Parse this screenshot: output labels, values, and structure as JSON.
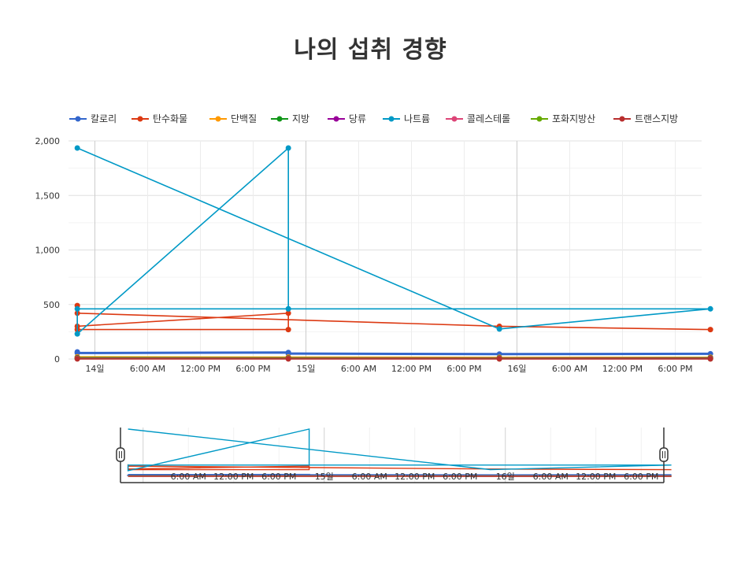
{
  "title": "나의 섭취 경향",
  "chart_data": {
    "type": "line",
    "title": "나의 섭취 경향",
    "xlabel": "",
    "ylabel": "",
    "ylim": [
      0,
      2000
    ],
    "yticks": [
      {
        "value": 0,
        "label": "0"
      },
      {
        "value": 500,
        "label": "500"
      },
      {
        "value": 1000,
        "label": "1,000"
      },
      {
        "value": 1500,
        "label": "1,500"
      },
      {
        "value": 2000,
        "label": "2,000"
      }
    ],
    "xlim": [
      "2015-07-13T21:00",
      "2015-07-16T21:00"
    ],
    "xticks": [
      {
        "x": "2015-07-14T00:00",
        "label": "14일"
      },
      {
        "x": "2015-07-14T06:00",
        "label": "6:00 AM"
      },
      {
        "x": "2015-07-14T12:00",
        "label": "12:00 PM"
      },
      {
        "x": "2015-07-14T18:00",
        "label": "6:00 PM"
      },
      {
        "x": "2015-07-15T00:00",
        "label": "15일"
      },
      {
        "x": "2015-07-15T06:00",
        "label": "6:00 AM"
      },
      {
        "x": "2015-07-15T12:00",
        "label": "12:00 PM"
      },
      {
        "x": "2015-07-15T18:00",
        "label": "6:00 PM"
      },
      {
        "x": "2015-07-16T00:00",
        "label": "16일"
      },
      {
        "x": "2015-07-16T06:00",
        "label": "6:00 AM"
      },
      {
        "x": "2015-07-16T12:00",
        "label": "12:00 PM"
      },
      {
        "x": "2015-07-16T18:00",
        "label": "6:00 PM"
      }
    ],
    "grid": true,
    "legend_position": "top-left",
    "series": [
      {
        "name": "칼로리",
        "color": "#3366cc",
        "points": [
          {
            "x": "2015-07-13T22:00",
            "y": 65
          },
          {
            "x": "2015-07-13T22:00",
            "y": 55
          },
          {
            "x": "2015-07-14T22:00",
            "y": 60
          },
          {
            "x": "2015-07-14T22:00",
            "y": 50
          },
          {
            "x": "2015-07-15T22:00",
            "y": 45
          },
          {
            "x": "2015-07-16T22:00",
            "y": 48
          }
        ]
      },
      {
        "name": "탄수화물",
        "color": "#dc3912",
        "points": [
          {
            "x": "2015-07-13T22:00",
            "y": 490
          },
          {
            "x": "2015-07-13T22:00",
            "y": 300
          },
          {
            "x": "2015-07-14T22:00",
            "y": 420
          },
          {
            "x": "2015-07-14T22:00",
            "y": 270
          },
          {
            "x": "2015-07-13T22:00",
            "y": 270
          },
          {
            "x": "2015-07-13T22:00",
            "y": 420
          },
          {
            "x": "2015-07-15T22:00",
            "y": 300
          },
          {
            "x": "2015-07-16T22:00",
            "y": 270
          }
        ]
      },
      {
        "name": "단백질",
        "color": "#ff9900",
        "points": [
          {
            "x": "2015-07-13T22:00",
            "y": 20
          },
          {
            "x": "2015-07-14T22:00",
            "y": 18
          },
          {
            "x": "2015-07-15T22:00",
            "y": 15
          },
          {
            "x": "2015-07-16T22:00",
            "y": 16
          }
        ]
      },
      {
        "name": "지방",
        "color": "#109618",
        "points": [
          {
            "x": "2015-07-13T22:00",
            "y": 12
          },
          {
            "x": "2015-07-14T22:00",
            "y": 10
          },
          {
            "x": "2015-07-15T22:00",
            "y": 9
          },
          {
            "x": "2015-07-16T22:00",
            "y": 10
          }
        ]
      },
      {
        "name": "당류",
        "color": "#990099",
        "points": [
          {
            "x": "2015-07-13T22:00",
            "y": 8
          },
          {
            "x": "2015-07-14T22:00",
            "y": 7
          },
          {
            "x": "2015-07-15T22:00",
            "y": 6
          },
          {
            "x": "2015-07-16T22:00",
            "y": 7
          }
        ]
      },
      {
        "name": "나트륨",
        "color": "#0099c6",
        "points": [
          {
            "x": "2015-07-13T22:00",
            "y": 1935
          },
          {
            "x": "2015-07-15T22:00",
            "y": 275
          },
          {
            "x": "2015-07-16T22:00",
            "y": 460
          },
          {
            "x": "2015-07-14T22:00",
            "y": 460
          },
          {
            "x": "2015-07-13T22:00",
            "y": 460
          },
          {
            "x": "2015-07-13T22:00",
            "y": 230
          },
          {
            "x": "2015-07-14T22:00",
            "y": 1935
          },
          {
            "x": "2015-07-14T22:00",
            "y": 460
          }
        ]
      },
      {
        "name": "콜레스테롤",
        "color": "#dd4477",
        "points": [
          {
            "x": "2015-07-13T22:00",
            "y": 5
          },
          {
            "x": "2015-07-14T22:00",
            "y": 5
          },
          {
            "x": "2015-07-15T22:00",
            "y": 4
          },
          {
            "x": "2015-07-16T22:00",
            "y": 4
          }
        ]
      },
      {
        "name": "포화지방산",
        "color": "#66aa00",
        "points": [
          {
            "x": "2015-07-13T22:00",
            "y": 3
          },
          {
            "x": "2015-07-14T22:00",
            "y": 3
          },
          {
            "x": "2015-07-15T22:00",
            "y": 2
          },
          {
            "x": "2015-07-16T22:00",
            "y": 2
          }
        ]
      },
      {
        "name": "트랜스지방",
        "color": "#b82e2e",
        "points": [
          {
            "x": "2015-07-13T22:00",
            "y": 1
          },
          {
            "x": "2015-07-14T22:00",
            "y": 1
          },
          {
            "x": "2015-07-15T22:00",
            "y": 1
          },
          {
            "x": "2015-07-16T22:00",
            "y": 1
          }
        ]
      }
    ],
    "navigator": {
      "xticks": [
        "6:00 AM",
        "12:00 PM",
        "6:00 PM",
        "15일",
        "6:00 AM",
        "12:00 PM",
        "6:00 PM",
        "16일",
        "6:00 AM",
        "12:00 PM",
        "6:00 PM"
      ]
    }
  }
}
